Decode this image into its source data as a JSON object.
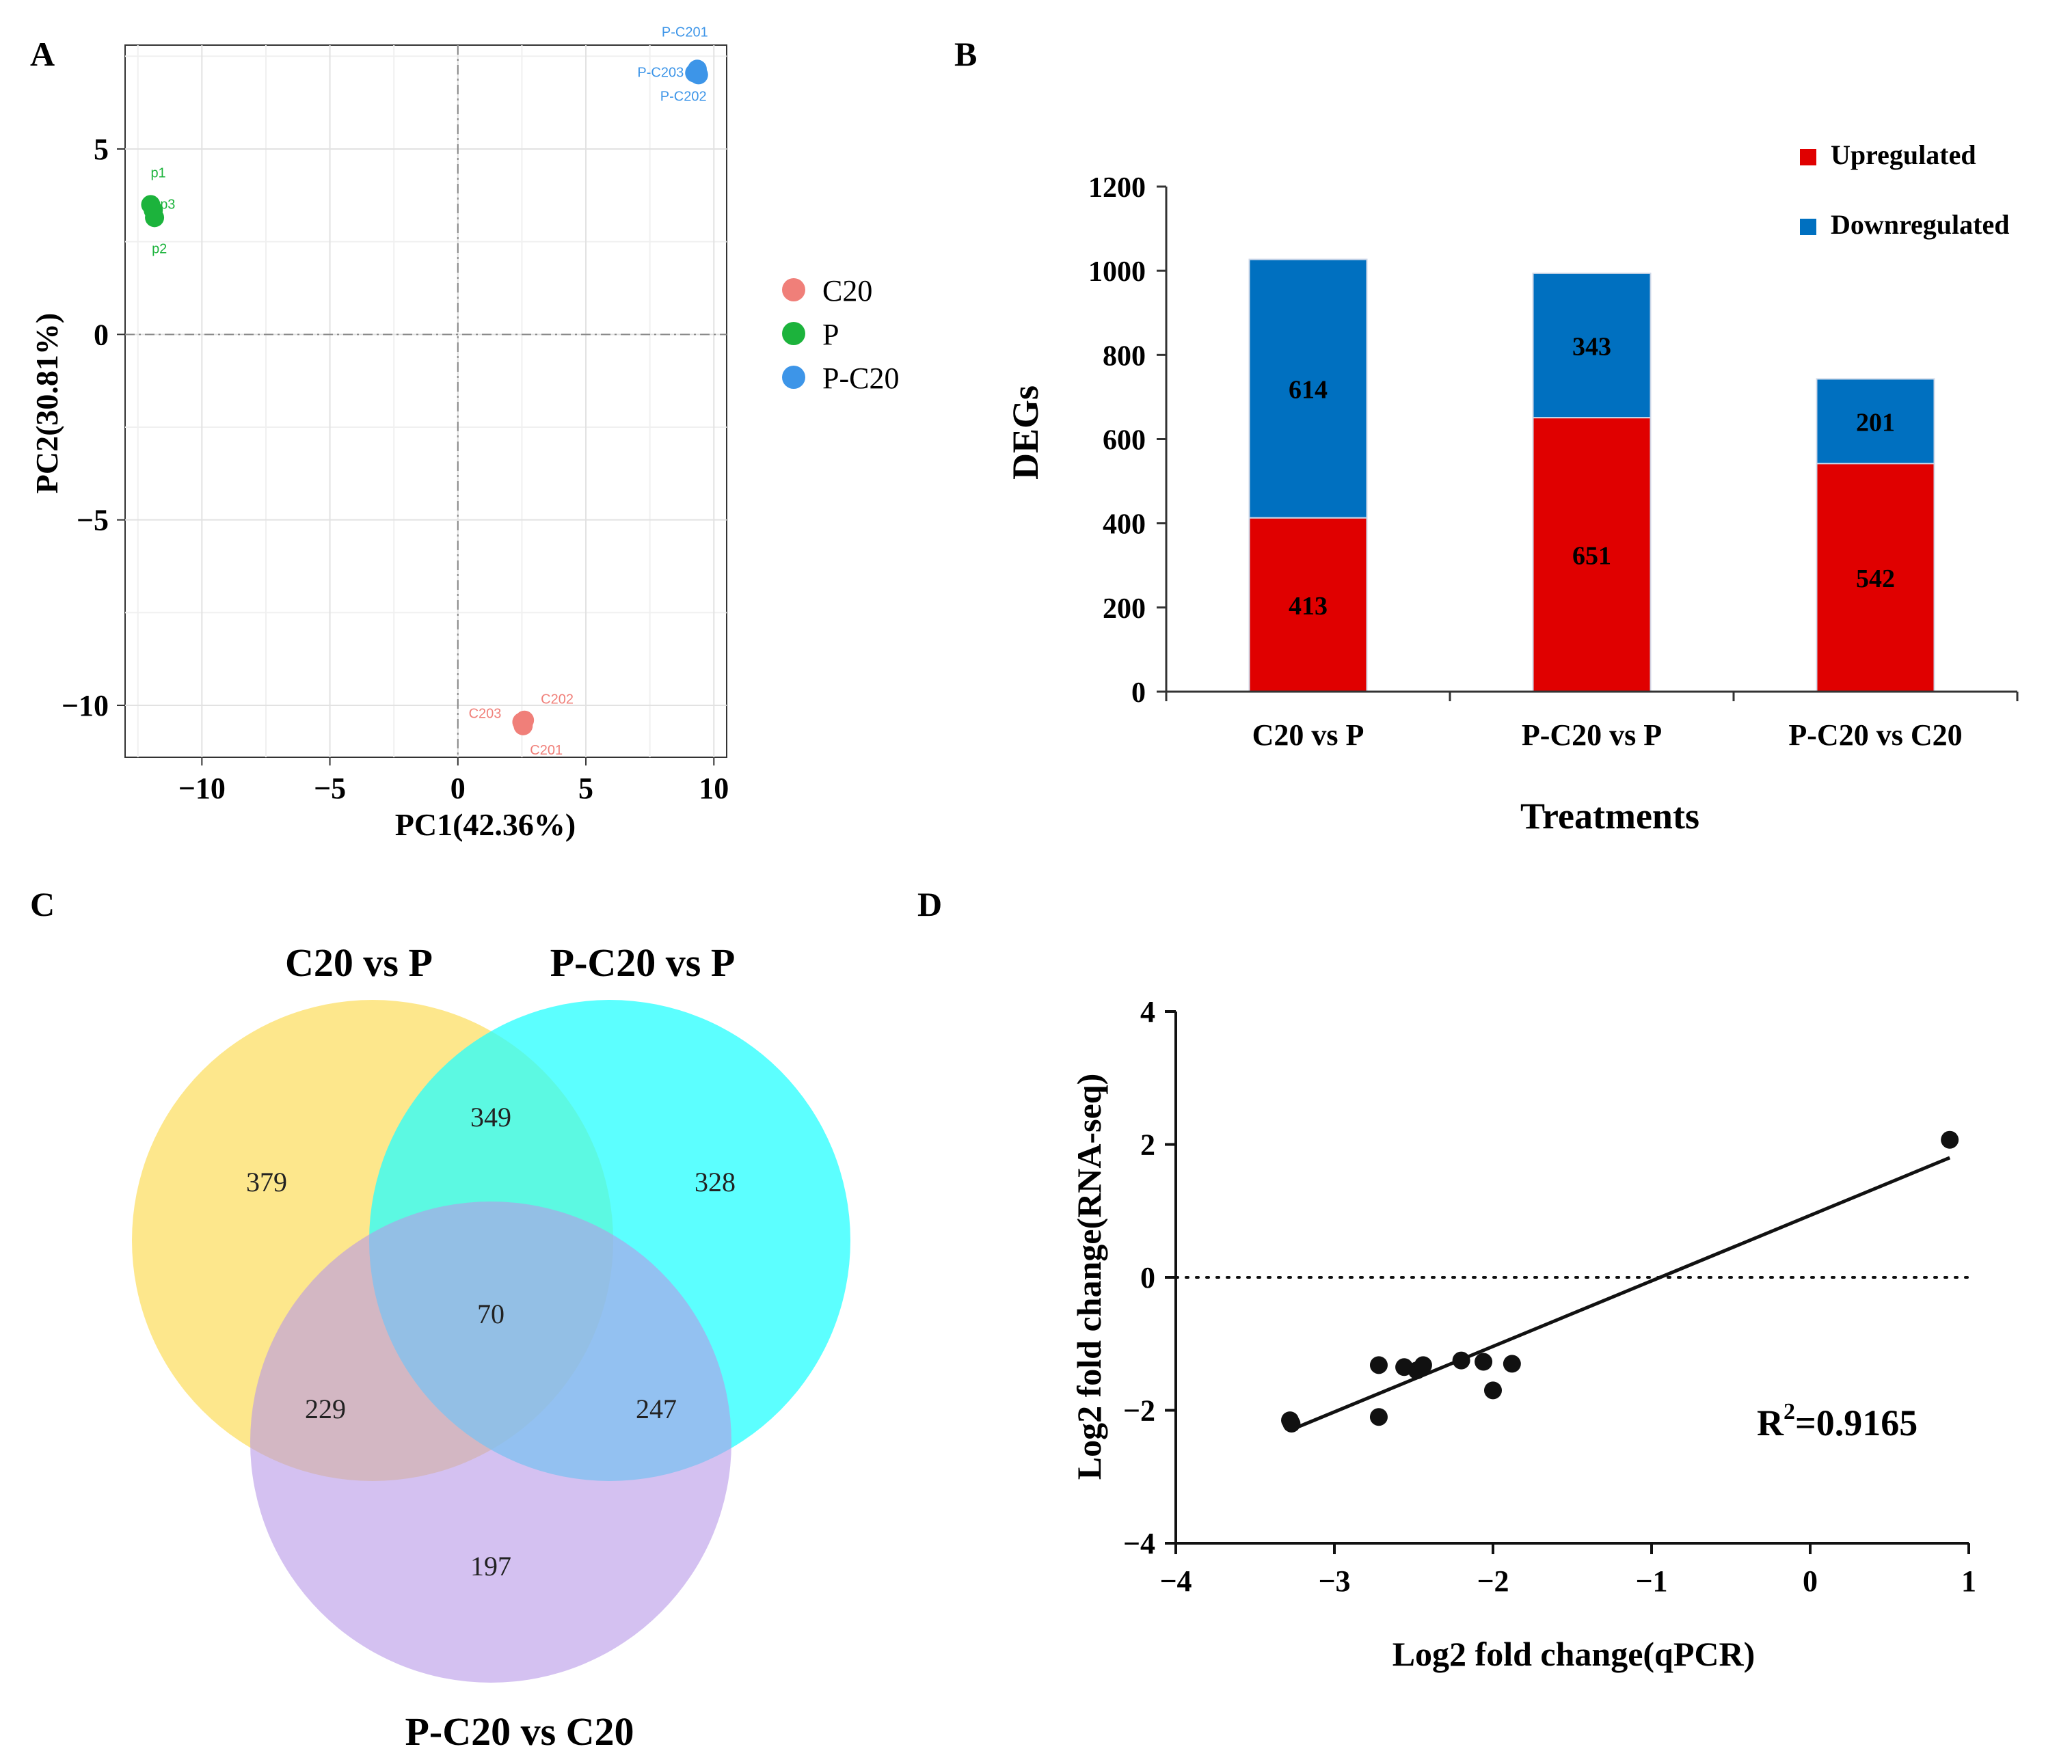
{
  "panels": {
    "A": "A",
    "B": "B",
    "C": "C",
    "D": "D"
  },
  "chart_data": [
    {
      "type": "scatter",
      "panel": "A",
      "xlabel": "PC1(42.36%)",
      "ylabel": "PC2(30.81%)",
      "xlim": [
        -13,
        10.5
      ],
      "ylim": [
        -11.4,
        7.8
      ],
      "xticks": [
        -10,
        -5,
        0,
        5,
        10
      ],
      "xtick_labels": [
        "−10",
        "−5",
        "0",
        "5",
        "10"
      ],
      "yticks": [
        5,
        0,
        -5,
        -10
      ],
      "ytick_labels": [
        "5",
        "0",
        "−5",
        "−10"
      ],
      "grid": true,
      "legend_position": "right",
      "series": [
        {
          "name": "C20",
          "color": "#f07f79",
          "points": [
            {
              "x": 2.6,
              "y": -10.4,
              "label": "C202"
            },
            {
              "x": 2.5,
              "y": -10.45,
              "label": "C203"
            },
            {
              "x": 2.55,
              "y": -10.55,
              "label": "C201"
            }
          ]
        },
        {
          "name": "P",
          "color": "#1cb33c",
          "points": [
            {
              "x": -12.0,
              "y": 3.5,
              "label": "p1"
            },
            {
              "x": -11.9,
              "y": 3.35,
              "label": "p3"
            },
            {
              "x": -11.85,
              "y": 3.15,
              "label": "p2"
            }
          ]
        },
        {
          "name": "P-C20",
          "color": "#3d95e8",
          "points": [
            {
              "x": 9.35,
              "y": 7.15,
              "label": "P-C201"
            },
            {
              "x": 9.25,
              "y": 7.05,
              "label": "P-C203"
            },
            {
              "x": 9.4,
              "y": 7.0,
              "label": "P-C202"
            }
          ]
        }
      ]
    },
    {
      "type": "bar",
      "panel": "B",
      "stacked": true,
      "categories": [
        "C20 vs P",
        "P-C20 vs P",
        "P-C20 vs C20"
      ],
      "series": [
        {
          "name": "Upregulated",
          "color": "#e00000",
          "values": [
            413,
            651,
            542
          ],
          "labels": [
            "413",
            "651",
            "542"
          ]
        },
        {
          "name": "Downregulated",
          "color": "#0070c0",
          "values": [
            614,
            343,
            201
          ],
          "labels": [
            "614",
            "343",
            "201"
          ]
        }
      ],
      "xlabel": "Treatments",
      "ylabel": "DEGs",
      "ylim": [
        0,
        1200
      ],
      "yticks": [
        0,
        200,
        400,
        600,
        800,
        1000,
        1200
      ],
      "ytick_labels": [
        "0",
        "200",
        "400",
        "600",
        "800",
        "1000",
        "1200"
      ],
      "legend_position": "top-right"
    },
    {
      "type": "venn",
      "panel": "C",
      "sets": [
        {
          "name": "C20 vs P",
          "color": "#fde16f"
        },
        {
          "name": "P-C20 vs P",
          "color": "#26ffff"
        },
        {
          "name": "P-C20 vs C20",
          "color": "#c9aef0"
        }
      ],
      "regions": {
        "only_c20_vs_p": 379,
        "only_pc20_vs_p": 328,
        "only_pc20_vs_c20": 197,
        "c20_vs_p_and_pc20_vs_p": 349,
        "c20_vs_p_and_pc20_vs_c20": 229,
        "pc20_vs_p_and_pc20_vs_c20": 247,
        "all_three": 70
      }
    },
    {
      "type": "scatter",
      "panel": "D",
      "xlabel": "Log2 fold change(qPCR)",
      "ylabel": "Log2 fold change(RNA-seq)",
      "xlim": [
        -4,
        1
      ],
      "ylim": [
        -4,
        4
      ],
      "xticks": [
        -4,
        -3,
        -2,
        -1,
        0,
        1
      ],
      "xtick_labels": [
        "−4",
        "−3",
        "−2",
        "−1",
        "0",
        "1"
      ],
      "yticks": [
        4,
        2,
        0,
        -2,
        -4
      ],
      "ytick_labels": [
        "4",
        "2",
        "0",
        "−2",
        "−4"
      ],
      "points": [
        {
          "x": -3.28,
          "y": -2.15
        },
        {
          "x": -3.27,
          "y": -2.2
        },
        {
          "x": -2.72,
          "y": -1.32
        },
        {
          "x": -2.72,
          "y": -2.1
        },
        {
          "x": -2.56,
          "y": -1.35
        },
        {
          "x": -2.48,
          "y": -1.4
        },
        {
          "x": -2.44,
          "y": -1.32
        },
        {
          "x": -2.2,
          "y": -1.25
        },
        {
          "x": -2.06,
          "y": -1.27
        },
        {
          "x": -2.0,
          "y": -1.7
        },
        {
          "x": -1.88,
          "y": -1.3
        },
        {
          "x": 0.88,
          "y": 2.07
        }
      ],
      "fit_line": {
        "x": [
          -3.28,
          0.88
        ],
        "y": [
          -2.3,
          1.8
        ]
      },
      "reference_line_y": 0,
      "annotation": {
        "base": "R",
        "sup": "2",
        "value": "=0.9165"
      }
    }
  ]
}
